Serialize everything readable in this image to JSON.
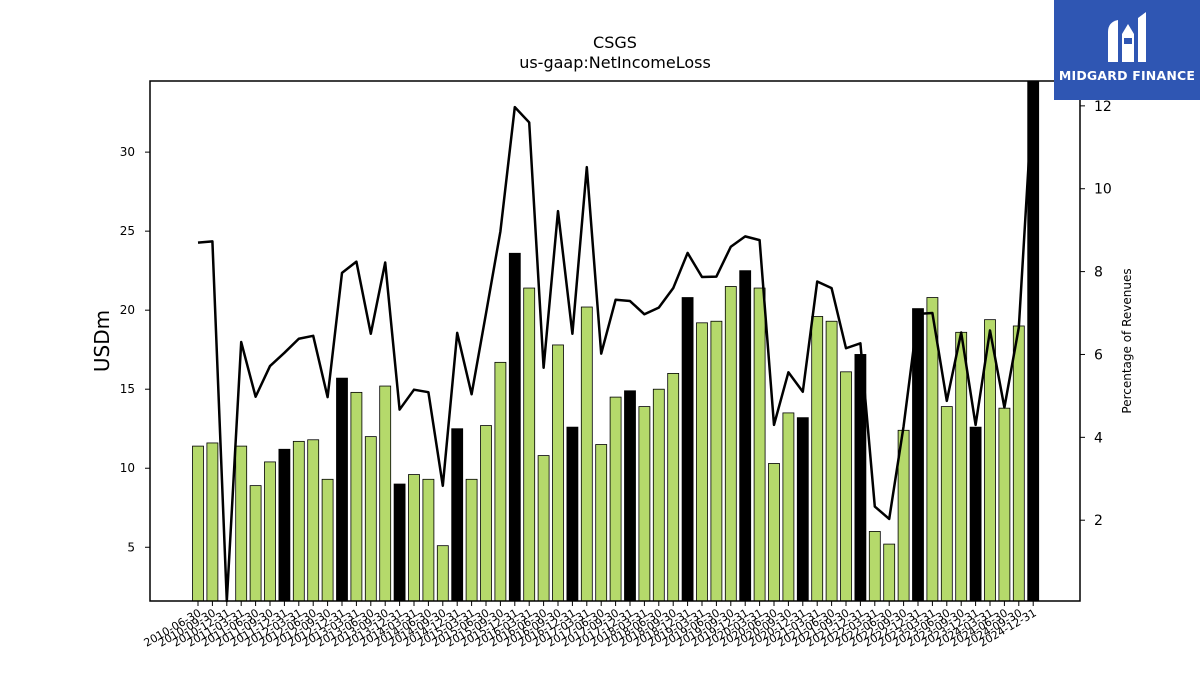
{
  "brand": {
    "name": "MIDGARD FINANCE",
    "bg_color": "#2f56b3"
  },
  "chart_data": {
    "type": "bar",
    "title": "CSGS",
    "subtitle": "us-gaap:NetIncomeLoss",
    "ylabel": "USDm",
    "y2label": "Percentage of Revenues",
    "ylim": [
      1.6,
      34.5
    ],
    "y2lim": [
      0.05,
      12.6
    ],
    "yticks": [
      5,
      10,
      15,
      20,
      25,
      30
    ],
    "y2ticks": [
      2,
      4,
      6,
      8,
      10,
      12
    ],
    "bar_color_default": "#b5d96b",
    "bar_color_q4": "#000000",
    "line_color": "#000000",
    "categories": [
      "2010-06-30",
      "2010-09-30",
      "2010-12-31",
      "2011-03-31",
      "2011-06-30",
      "2011-09-30",
      "2011-12-31",
      "2012-03-31",
      "2012-06-30",
      "2012-09-30",
      "2012-12-31",
      "2013-03-31",
      "2013-06-30",
      "2013-09-30",
      "2013-12-31",
      "2014-03-31",
      "2014-06-30",
      "2014-09-30",
      "2014-12-31",
      "2015-03-31",
      "2015-06-30",
      "2015-09-30",
      "2015-12-31",
      "2016-03-31",
      "2016-06-30",
      "2016-09-30",
      "2016-12-31",
      "2017-03-31",
      "2017-06-30",
      "2017-09-30",
      "2017-12-31",
      "2018-03-31",
      "2018-06-30",
      "2018-09-30",
      "2018-12-31",
      "2019-03-31",
      "2019-06-30",
      "2019-09-30",
      "2019-12-31",
      "2020-03-31",
      "2020-06-30",
      "2020-09-30",
      "2020-12-31",
      "2021-03-31",
      "2021-06-30",
      "2021-09-30",
      "2021-12-31",
      "2022-03-31",
      "2022-06-30",
      "2022-09-30",
      "2022-12-31",
      "2023-03-31",
      "2023-06-30",
      "2023-09-30",
      "2023-12-31",
      "2024-03-31",
      "2024-06-30",
      "2024-09-30",
      "2024-12-31"
    ],
    "xtick_labels": [
      "2010-06-30",
      "2010-09-30",
      "2010-12-31",
      "2011-03-31",
      "2011-06-30",
      "2011-09-30",
      "2011-12-31",
      "2012-03-31",
      "2012-06-30",
      "2012-09-30",
      "2012-12-31",
      "2013-03-31",
      "2013-06-30",
      "2013-09-30",
      "2013-12-31",
      "2014-03-31",
      "2014-06-30",
      "2014-09-30",
      "2014-12-31",
      "2015-03-31",
      "2015-06-30",
      "2015-09-30",
      "2015-12-31",
      "2016-03-31",
      "2016-06-30",
      "2016-09-30",
      "2016-12-31",
      "2017-03-31",
      "2017-06-30",
      "2017-09-30",
      "2017-12-31",
      "2018-03-31",
      "2018-06-30",
      "2018-09-30",
      "2018-12-31",
      "2019-03-31",
      "2019-06-30",
      "2019-09-30",
      "2019-12-31",
      "2020-03-31",
      "2020-06-30",
      "2020-09-30",
      "2020-12-31",
      "2021-03-31",
      "2021-06-30",
      "2021-09-30",
      "2021-12-31",
      "2022-03-31",
      "2022-06-30",
      "2022-09-30",
      "2022-12-31",
      "2023-03-31",
      "2023-06-30",
      "2023-09-30",
      "2023-12-31",
      "2024-03-31",
      "2024-06-30",
      "2024-09-30",
      "2024-12-31"
    ],
    "series": [
      {
        "type": "bar",
        "axis": "left",
        "values": [
          11.4,
          11.6,
          null,
          11.4,
          8.9,
          10.4,
          11.2,
          11.7,
          11.8,
          9.3,
          15.7,
          14.8,
          12.0,
          15.2,
          9.0,
          9.6,
          9.3,
          5.1,
          12.5,
          9.3,
          12.7,
          16.7,
          23.6,
          21.4,
          10.8,
          17.8,
          12.6,
          20.2,
          11.5,
          14.5,
          14.9,
          13.9,
          15.0,
          16.0,
          20.8,
          19.2,
          19.3,
          21.5,
          22.5,
          21.4,
          10.3,
          13.5,
          13.2,
          19.6,
          19.3,
          16.1,
          17.2,
          6.0,
          5.2,
          12.4,
          20.1,
          20.8,
          13.9,
          18.6,
          12.6,
          19.4,
          13.8,
          19.0,
          34.6
        ],
        "highlight": [
          false,
          false,
          false,
          false,
          false,
          false,
          true,
          false,
          false,
          false,
          true,
          false,
          false,
          false,
          true,
          false,
          false,
          false,
          true,
          false,
          false,
          false,
          true,
          false,
          false,
          false,
          true,
          false,
          false,
          false,
          true,
          false,
          false,
          false,
          true,
          false,
          false,
          false,
          true,
          false,
          false,
          false,
          true,
          false,
          false,
          false,
          true,
          false,
          false,
          false,
          true,
          false,
          false,
          false,
          true,
          false,
          false,
          false,
          true
        ]
      },
      {
        "type": "line",
        "axis": "right",
        "values": [
          8.7,
          8.73,
          0.0,
          6.3,
          4.98,
          5.72,
          6.04,
          6.38,
          6.45,
          4.97,
          7.97,
          8.24,
          6.5,
          8.22,
          4.67,
          5.15,
          5.09,
          2.83,
          6.52,
          5.04,
          6.99,
          8.97,
          11.97,
          11.6,
          5.68,
          9.46,
          6.5,
          10.52,
          6.02,
          7.32,
          7.29,
          6.97,
          7.13,
          7.6,
          8.45,
          7.87,
          7.88,
          8.6,
          8.85,
          8.76,
          4.3,
          5.57,
          5.1,
          7.76,
          7.6,
          6.15,
          6.27,
          2.33,
          2.03,
          4.27,
          6.98,
          7.0,
          4.88,
          6.53,
          4.3,
          6.58,
          4.72,
          6.65,
          12.45
        ]
      }
    ]
  }
}
